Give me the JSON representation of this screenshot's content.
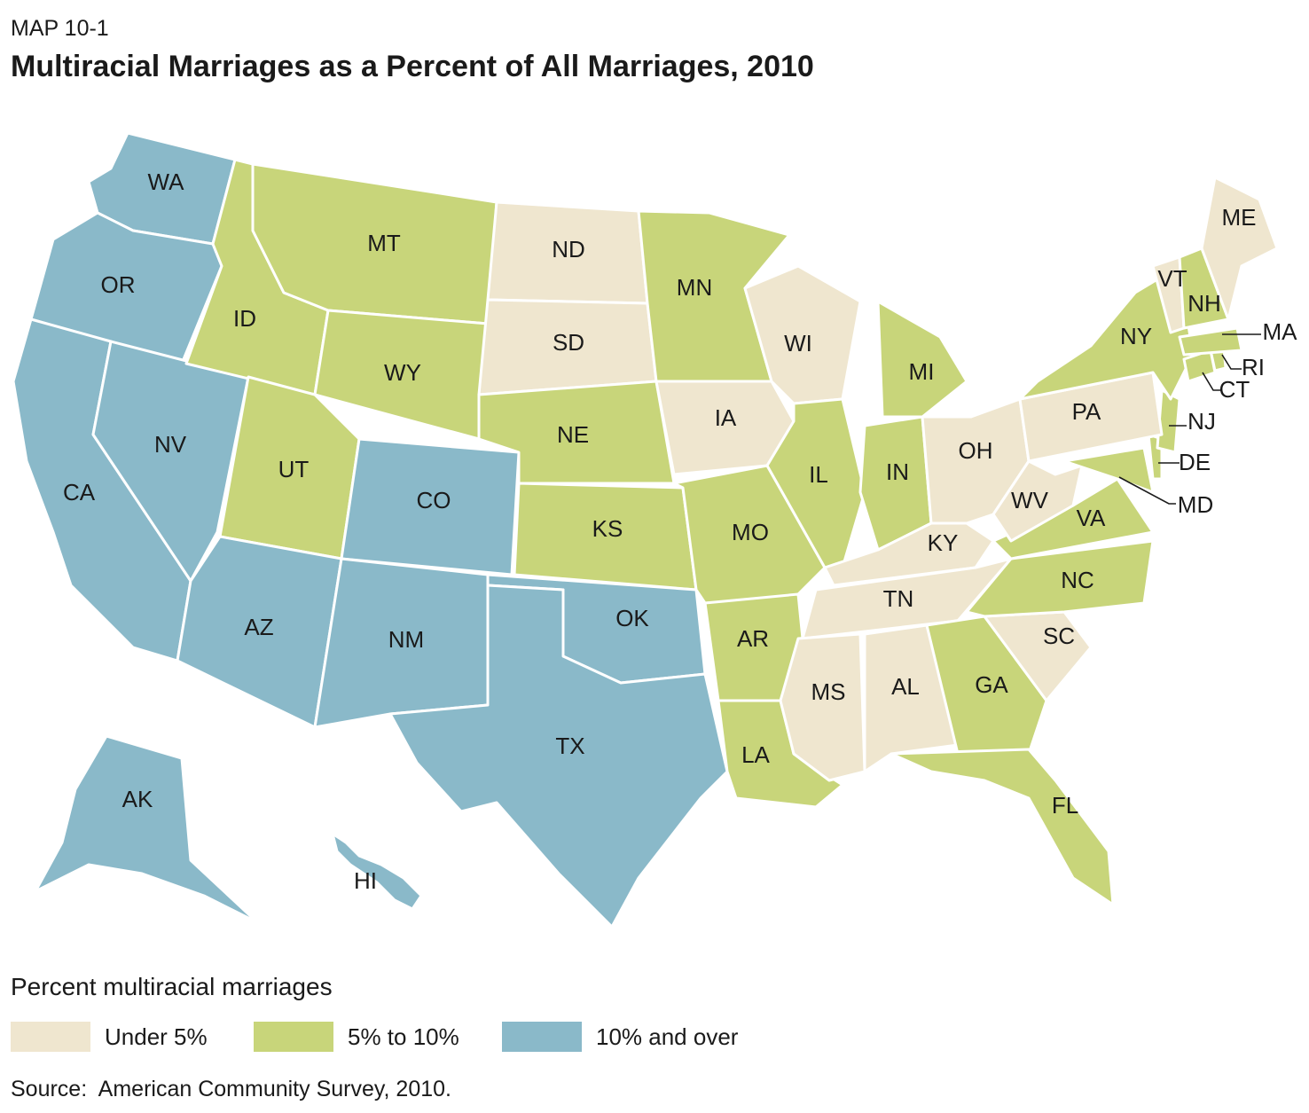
{
  "header": {
    "label": "MAP 10-1",
    "title": "Multiracial Marriages as a Percent of All Marriages, 2010"
  },
  "legend": {
    "title": "Percent multiracial marriages",
    "items": [
      {
        "label": "Under 5%",
        "color": "#efe6cf"
      },
      {
        "label": "5% to 10%",
        "color": "#c8d57a"
      },
      {
        "label": "10% and over",
        "color": "#8ab9c9"
      }
    ]
  },
  "source": "Source:  American Community Survey, 2010.",
  "states": [
    {
      "abbr": "WA",
      "category": 2
    },
    {
      "abbr": "OR",
      "category": 2
    },
    {
      "abbr": "CA",
      "category": 2
    },
    {
      "abbr": "NV",
      "category": 2
    },
    {
      "abbr": "ID",
      "category": 1
    },
    {
      "abbr": "MT",
      "category": 1
    },
    {
      "abbr": "WY",
      "category": 1
    },
    {
      "abbr": "UT",
      "category": 1
    },
    {
      "abbr": "AZ",
      "category": 2
    },
    {
      "abbr": "CO",
      "category": 2
    },
    {
      "abbr": "NM",
      "category": 2
    },
    {
      "abbr": "ND",
      "category": 0
    },
    {
      "abbr": "SD",
      "category": 0
    },
    {
      "abbr": "NE",
      "category": 1
    },
    {
      "abbr": "KS",
      "category": 1
    },
    {
      "abbr": "OK",
      "category": 2
    },
    {
      "abbr": "TX",
      "category": 2
    },
    {
      "abbr": "MN",
      "category": 1
    },
    {
      "abbr": "IA",
      "category": 0
    },
    {
      "abbr": "MO",
      "category": 1
    },
    {
      "abbr": "AR",
      "category": 1
    },
    {
      "abbr": "LA",
      "category": 1
    },
    {
      "abbr": "WI",
      "category": 0
    },
    {
      "abbr": "IL",
      "category": 1
    },
    {
      "abbr": "MI",
      "category": 1
    },
    {
      "abbr": "IN",
      "category": 1
    },
    {
      "abbr": "OH",
      "category": 0
    },
    {
      "abbr": "KY",
      "category": 0
    },
    {
      "abbr": "TN",
      "category": 0
    },
    {
      "abbr": "MS",
      "category": 0
    },
    {
      "abbr": "AL",
      "category": 0
    },
    {
      "abbr": "GA",
      "category": 1
    },
    {
      "abbr": "FL",
      "category": 1
    },
    {
      "abbr": "SC",
      "category": 0
    },
    {
      "abbr": "NC",
      "category": 1
    },
    {
      "abbr": "VA",
      "category": 1
    },
    {
      "abbr": "WV",
      "category": 0
    },
    {
      "abbr": "MD",
      "category": 1
    },
    {
      "abbr": "DE",
      "category": 1
    },
    {
      "abbr": "NJ",
      "category": 1
    },
    {
      "abbr": "PA",
      "category": 0
    },
    {
      "abbr": "NY",
      "category": 1
    },
    {
      "abbr": "CT",
      "category": 1
    },
    {
      "abbr": "RI",
      "category": 1
    },
    {
      "abbr": "MA",
      "category": 1
    },
    {
      "abbr": "VT",
      "category": 0
    },
    {
      "abbr": "NH",
      "category": 1
    },
    {
      "abbr": "ME",
      "category": 0
    },
    {
      "abbr": "AK",
      "category": 2
    },
    {
      "abbr": "HI",
      "category": 2
    }
  ]
}
